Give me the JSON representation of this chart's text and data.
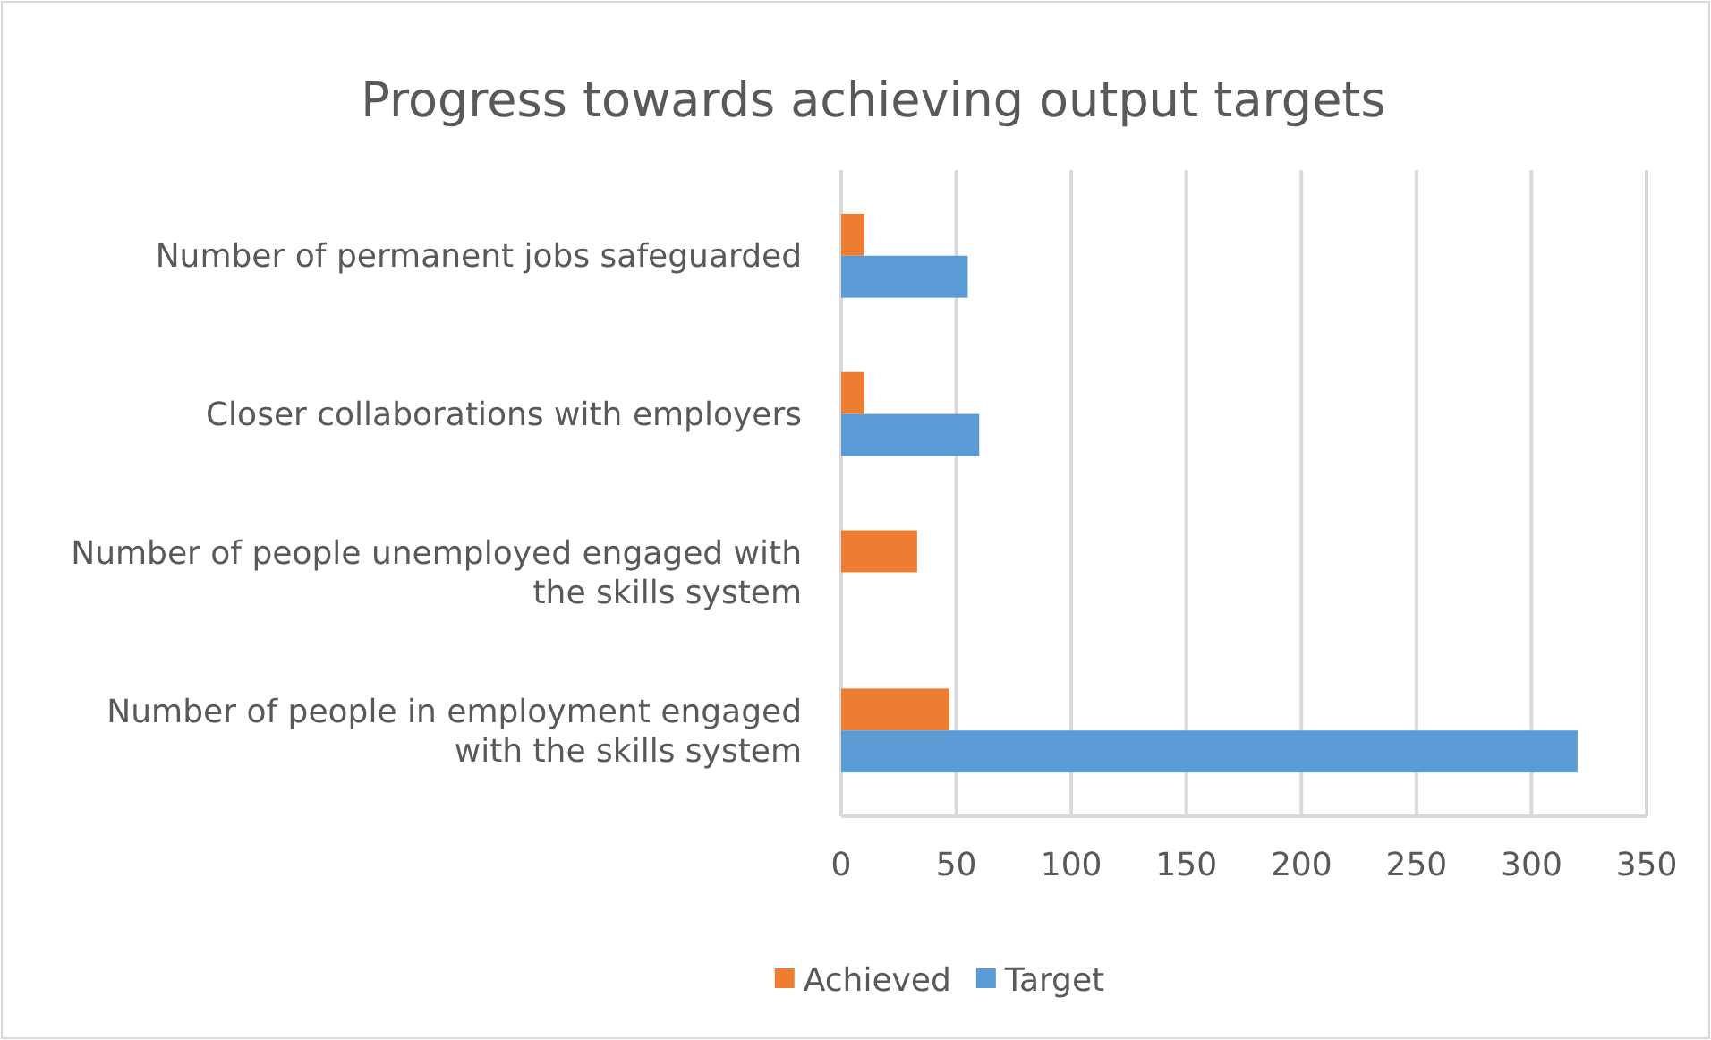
{
  "chart_data": {
    "type": "bar",
    "orientation": "horizontal",
    "title": "Progress towards achieving output targets",
    "categories": [
      "Number of permanent jobs safeguarded",
      "Closer collaborations with employers",
      "Number of people unemployed engaged with the skills system",
      "Number of people in employment engaged with the skills system"
    ],
    "series": [
      {
        "name": "Achieved",
        "color": "#ed7d31",
        "values": [
          10,
          10,
          33,
          47
        ]
      },
      {
        "name": "Target",
        "color": "#5b9bd5",
        "values": [
          55,
          60,
          null,
          320
        ]
      }
    ],
    "xlim": [
      0,
      350
    ],
    "xticks": [
      0,
      50,
      100,
      150,
      200,
      250,
      300,
      350
    ],
    "grid": "x",
    "legend": "bottom"
  }
}
